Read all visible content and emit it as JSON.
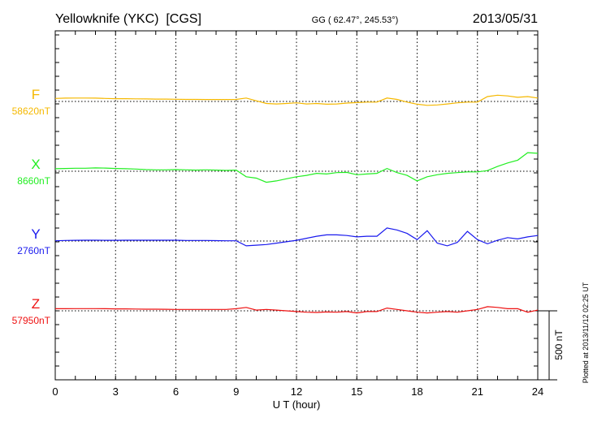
{
  "chart_data": {
    "type": "line",
    "title": "Yellowknife (YKC)  [CGS]",
    "coords": "GG ( 62.47°, 245.53°)",
    "date": "2013/05/31",
    "xlabel": "U T (hour)",
    "xlim": [
      0,
      24
    ],
    "xticks": [
      "0",
      "3",
      "6",
      "9",
      "12",
      "15",
      "18",
      "21",
      "24"
    ],
    "scale_bar_label": "500 nT",
    "scale_bar_nT": 500,
    "footer": "Plotted at 2013/11/12 02:25 UT",
    "grid": true,
    "x": [
      0,
      0.5,
      1,
      1.5,
      2,
      2.5,
      3,
      3.5,
      4,
      4.5,
      5,
      5.5,
      6,
      6.5,
      7,
      7.5,
      8,
      8.5,
      9,
      9.5,
      10,
      10.5,
      11,
      11.5,
      12,
      12.5,
      13,
      13.5,
      14,
      14.5,
      15,
      15.5,
      16,
      16.5,
      17,
      17.5,
      18,
      18.5,
      19,
      19.5,
      20,
      20.5,
      21,
      21.5,
      22,
      22.5,
      23,
      23.5,
      24
    ],
    "series": [
      {
        "name": "F",
        "baseline_label": "58620nT",
        "color": "#f5b800",
        "values": [
          22,
          24,
          25,
          25,
          24,
          22,
          20,
          20,
          19,
          18,
          17,
          17,
          16,
          15,
          15,
          14,
          14,
          14,
          15,
          25,
          5,
          -15,
          -18,
          -15,
          -10,
          -18,
          -15,
          -20,
          -18,
          -12,
          -8,
          -5,
          -5,
          25,
          15,
          -5,
          -20,
          -28,
          -25,
          -18,
          -10,
          -5,
          -5,
          35,
          45,
          40,
          30,
          35,
          25
        ]
      },
      {
        "name": "X",
        "baseline_label": "8660nT",
        "color": "#22ee22",
        "values": [
          18,
          20,
          22,
          22,
          24,
          23,
          20,
          18,
          16,
          12,
          10,
          10,
          12,
          10,
          8,
          10,
          8,
          6,
          8,
          -40,
          -50,
          -80,
          -70,
          -55,
          -40,
          -30,
          -15,
          -20,
          -10,
          -8,
          -25,
          -20,
          -15,
          20,
          -10,
          -30,
          -70,
          -40,
          -25,
          -15,
          -10,
          -5,
          -5,
          5,
          35,
          60,
          80,
          135,
          130
        ]
      },
      {
        "name": "Y",
        "baseline_label": "2760nT",
        "color": "#1a1aee",
        "values": [
          2,
          4,
          5,
          6,
          6,
          5,
          5,
          6,
          6,
          6,
          6,
          6,
          6,
          4,
          4,
          4,
          3,
          2,
          2,
          -35,
          -30,
          -25,
          -15,
          -5,
          5,
          20,
          35,
          45,
          45,
          40,
          30,
          35,
          35,
          95,
          80,
          55,
          10,
          75,
          -15,
          -35,
          -10,
          70,
          10,
          -20,
          5,
          25,
          15,
          30,
          40
        ]
      },
      {
        "name": "Z",
        "baseline_label": "57950nT",
        "color": "#ee1111",
        "values": [
          15,
          15,
          16,
          16,
          16,
          15,
          14,
          14,
          13,
          12,
          12,
          11,
          10,
          10,
          10,
          10,
          10,
          10,
          15,
          25,
          5,
          10,
          5,
          0,
          -5,
          -10,
          -12,
          -8,
          -10,
          -5,
          -15,
          -5,
          -5,
          20,
          10,
          0,
          -10,
          -15,
          -10,
          -5,
          -10,
          0,
          10,
          30,
          25,
          15,
          15,
          -10,
          5
        ]
      }
    ]
  }
}
